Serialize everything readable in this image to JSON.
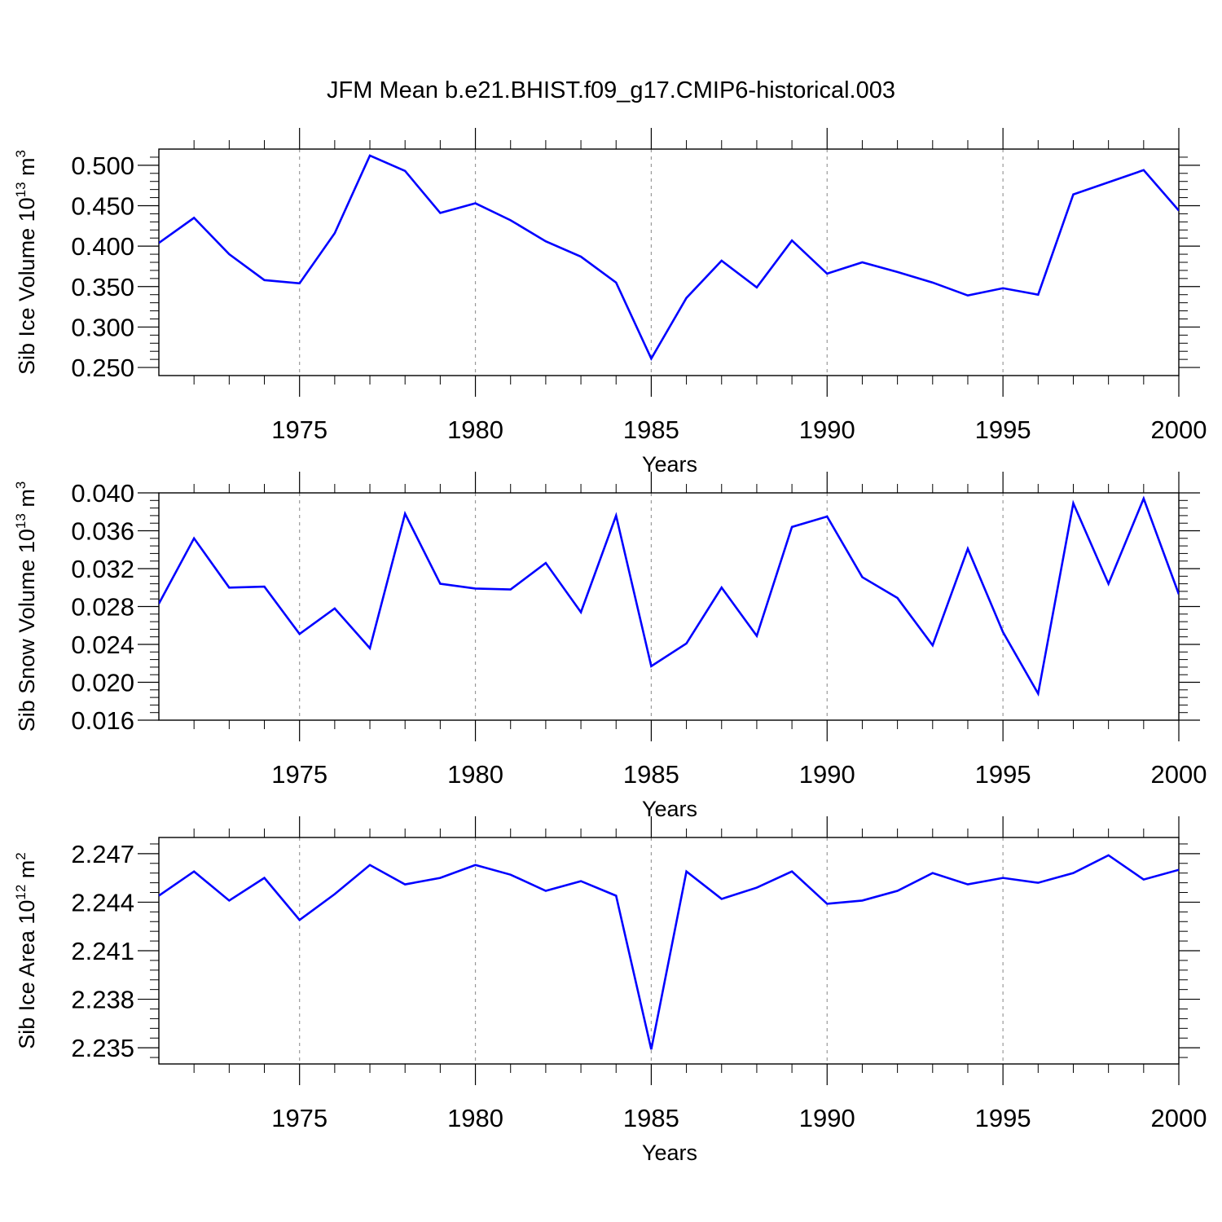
{
  "title": "JFM Mean b.e21.BHIST.f09_g17.CMIP6-historical.003",
  "line_color": "#0000ff",
  "chart_data": [
    {
      "type": "line",
      "xlabel": "Years",
      "ylabel": {
        "main": "Sib Ice Volume 10",
        "exp": "13",
        "unit": " m",
        "unit_exp": "3"
      },
      "xlim": [
        1971,
        2000
      ],
      "ylim": [
        0.24,
        0.52
      ],
      "x_ticks": [
        1975,
        1980,
        1985,
        1990,
        1995,
        2000
      ],
      "y_ticks": [
        0.25,
        0.3,
        0.35,
        0.4,
        0.45,
        0.5
      ],
      "y_tick_labels": [
        "0.250",
        "0.300",
        "0.350",
        "0.400",
        "0.450",
        "0.500"
      ],
      "series": [
        {
          "name": "Sib Ice Volume",
          "x": [
            1971,
            1972,
            1973,
            1974,
            1975,
            1976,
            1977,
            1978,
            1979,
            1980,
            1981,
            1982,
            1983,
            1984,
            1985,
            1986,
            1987,
            1988,
            1989,
            1990,
            1991,
            1992,
            1993,
            1994,
            1995,
            1996,
            1997,
            1998,
            1999,
            2000
          ],
          "values": [
            0.404,
            0.435,
            0.39,
            0.358,
            0.354,
            0.416,
            0.512,
            0.493,
            0.441,
            0.453,
            0.432,
            0.406,
            0.387,
            0.355,
            0.261,
            0.336,
            0.382,
            0.349,
            0.407,
            0.366,
            0.38,
            0.368,
            0.355,
            0.339,
            0.348,
            0.34,
            0.464,
            0.479,
            0.494,
            0.444
          ]
        }
      ]
    },
    {
      "type": "line",
      "xlabel": "Years",
      "ylabel": {
        "main": "Sib Snow Volume 10",
        "exp": "13",
        "unit": " m",
        "unit_exp": "3"
      },
      "xlim": [
        1971,
        2000
      ],
      "ylim": [
        0.016,
        0.04
      ],
      "x_ticks": [
        1975,
        1980,
        1985,
        1990,
        1995,
        2000
      ],
      "y_ticks": [
        0.016,
        0.02,
        0.024,
        0.028,
        0.032,
        0.036,
        0.04
      ],
      "y_tick_labels": [
        "0.016",
        "0.020",
        "0.024",
        "0.028",
        "0.032",
        "0.036",
        "0.040"
      ],
      "series": [
        {
          "name": "Sib Snow Volume",
          "x": [
            1971,
            1972,
            1973,
            1974,
            1975,
            1976,
            1977,
            1978,
            1979,
            1980,
            1981,
            1982,
            1983,
            1984,
            1985,
            1986,
            1987,
            1988,
            1989,
            1990,
            1991,
            1992,
            1993,
            1994,
            1995,
            1996,
            1997,
            1998,
            1999,
            2000
          ],
          "values": [
            0.0283,
            0.0352,
            0.03,
            0.0301,
            0.0251,
            0.0278,
            0.0236,
            0.0378,
            0.0304,
            0.0299,
            0.0298,
            0.0326,
            0.0274,
            0.0376,
            0.0217,
            0.0241,
            0.03,
            0.0249,
            0.0364,
            0.0375,
            0.0311,
            0.0289,
            0.0239,
            0.0341,
            0.0253,
            0.0188,
            0.0389,
            0.0304,
            0.0394,
            0.0293
          ]
        }
      ]
    },
    {
      "type": "line",
      "xlabel": "Years",
      "ylabel": {
        "main": "Sib Ice Area 10",
        "exp": "12",
        "unit": " m",
        "unit_exp": "2"
      },
      "xlim": [
        1971,
        2000
      ],
      "ylim": [
        2.234,
        2.248
      ],
      "x_ticks": [
        1975,
        1980,
        1985,
        1990,
        1995,
        2000
      ],
      "y_ticks": [
        2.235,
        2.238,
        2.241,
        2.244,
        2.247
      ],
      "y_tick_labels": [
        "2.235",
        "2.238",
        "2.241",
        "2.244",
        "2.247"
      ],
      "series": [
        {
          "name": "Sib Ice Area",
          "x": [
            1971,
            1972,
            1973,
            1974,
            1975,
            1976,
            1977,
            1978,
            1979,
            1980,
            1981,
            1982,
            1983,
            1984,
            1985,
            1986,
            1987,
            1988,
            1989,
            1990,
            1991,
            1992,
            1993,
            1994,
            1995,
            1996,
            1997,
            1998,
            1999,
            2000
          ],
          "values": [
            2.2444,
            2.2459,
            2.2441,
            2.2455,
            2.2429,
            2.2445,
            2.2463,
            2.2451,
            2.2455,
            2.2463,
            2.2457,
            2.2447,
            2.2453,
            2.2444,
            2.2349,
            2.2459,
            2.2442,
            2.2449,
            2.2459,
            2.2439,
            2.2441,
            2.2447,
            2.2458,
            2.2451,
            2.2455,
            2.2452,
            2.2458,
            2.2469,
            2.2454,
            2.246
          ]
        }
      ]
    }
  ]
}
